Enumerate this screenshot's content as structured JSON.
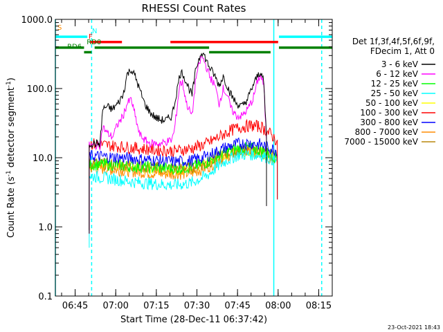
{
  "chart_data": {
    "type": "line",
    "title": "RHESSI Count Rates",
    "xlabel": "Start Time (28-Dec-11 06:37:42)",
    "ylabel": "Count Rate (s⁻¹ detector segment⁻¹)",
    "ylabel_main": "Count Rate (s",
    "ylabel_sup1": "-1",
    "ylabel_mid": " detector segment",
    "ylabel_sup2": "-1",
    "ylabel_end": ")",
    "y_scale": "log",
    "ylim": [
      0.1,
      1000
    ],
    "xlim": [
      "06:37:42",
      "08:20:00"
    ],
    "xlim_minutes": [
      0,
      102.3
    ],
    "x_ticks": [
      {
        "label": "06:45",
        "min": 7.3
      },
      {
        "label": "07:00",
        "min": 22.3
      },
      {
        "label": "07:15",
        "min": 37.3
      },
      {
        "label": "07:30",
        "min": 52.3
      },
      {
        "label": "07:45",
        "min": 67.3
      },
      {
        "label": "08:00",
        "min": 82.3
      },
      {
        "label": "08:15",
        "min": 97.3
      }
    ],
    "y_ticks": [
      {
        "label": "1000.0",
        "v": 1000
      },
      {
        "label": "100.0",
        "v": 100
      },
      {
        "label": "10.0",
        "v": 10
      },
      {
        "label": "1.0",
        "v": 1
      },
      {
        "label": "0.1",
        "v": 0.1
      }
    ],
    "legend_header": [
      "Det 1f,3f,4f,5f,6f,9f,",
      "FDecim 1, Att 0"
    ],
    "legend_placement": "right",
    "series": [
      {
        "name": "3 - 6 keV",
        "color": "#000000",
        "points": [
          [
            12.5,
            16
          ],
          [
            16.5,
            16
          ],
          [
            17.5,
            50
          ],
          [
            19,
            55
          ],
          [
            21,
            50
          ],
          [
            23,
            60
          ],
          [
            25,
            80
          ],
          [
            26.5,
            160
          ],
          [
            28,
            190
          ],
          [
            29.5,
            150
          ],
          [
            31,
            100
          ],
          [
            33,
            60
          ],
          [
            35,
            45
          ],
          [
            37,
            38
          ],
          [
            39,
            35
          ],
          [
            41,
            35
          ],
          [
            43,
            40
          ],
          [
            44,
            60
          ],
          [
            46,
            160
          ],
          [
            47,
            170
          ],
          [
            48.5,
            120
          ],
          [
            50.5,
            80
          ],
          [
            52,
            200
          ],
          [
            54,
            350
          ],
          [
            55,
            300
          ],
          [
            57,
            200
          ],
          [
            59,
            150
          ],
          [
            60.5,
            110
          ],
          [
            62,
            150
          ],
          [
            63.5,
            110
          ],
          [
            65,
            80
          ],
          [
            67,
            60
          ],
          [
            69,
            55
          ],
          [
            71,
            70
          ],
          [
            73,
            110
          ],
          [
            75,
            160
          ],
          [
            76,
            175
          ],
          [
            77,
            120
          ],
          [
            78,
            20
          ]
        ]
      },
      {
        "name": "6 - 12 keV",
        "color": "#ff00ff",
        "points": [
          [
            12.5,
            15
          ],
          [
            16.5,
            15
          ],
          [
            17.5,
            28
          ],
          [
            19,
            23
          ],
          [
            21,
            20
          ],
          [
            23,
            30
          ],
          [
            25,
            40
          ],
          [
            26.5,
            60
          ],
          [
            28,
            70
          ],
          [
            29.5,
            40
          ],
          [
            31,
            22
          ],
          [
            33,
            18
          ],
          [
            35,
            16
          ],
          [
            37,
            16
          ],
          [
            39,
            16
          ],
          [
            41,
            17
          ],
          [
            43,
            18
          ],
          [
            44,
            25
          ],
          [
            46,
            120
          ],
          [
            47,
            120
          ],
          [
            48.5,
            60
          ],
          [
            50.5,
            40
          ],
          [
            52,
            150
          ],
          [
            54,
            290
          ],
          [
            55,
            250
          ],
          [
            57,
            150
          ],
          [
            59,
            110
          ],
          [
            60.5,
            60
          ],
          [
            62,
            100
          ],
          [
            63.5,
            80
          ],
          [
            65,
            50
          ],
          [
            67,
            40
          ],
          [
            69,
            40
          ],
          [
            71,
            50
          ],
          [
            73,
            70
          ],
          [
            75,
            140
          ],
          [
            76,
            150
          ],
          [
            77,
            110
          ],
          [
            78,
            18
          ]
        ]
      },
      {
        "name": "12 - 25 keV",
        "color": "#00ff00",
        "points": [
          [
            12.5,
            8
          ],
          [
            16.5,
            8
          ],
          [
            20,
            8
          ],
          [
            28,
            7.5
          ],
          [
            36,
            7.2
          ],
          [
            44,
            7
          ],
          [
            50,
            7.3
          ],
          [
            56,
            8.5
          ],
          [
            60,
            10.5
          ],
          [
            64,
            12.5
          ],
          [
            68,
            13.8
          ],
          [
            72,
            13.8
          ],
          [
            76,
            12.8
          ],
          [
            80,
            11
          ],
          [
            82,
            10
          ]
        ]
      },
      {
        "name": "25 - 50 keV",
        "color": "#00ffff",
        "points": [
          [
            12.5,
            5.5
          ],
          [
            16.5,
            5.2
          ],
          [
            20,
            5
          ],
          [
            28,
            4.5
          ],
          [
            36,
            4.2
          ],
          [
            44,
            4
          ],
          [
            50,
            4.3
          ],
          [
            56,
            5.5
          ],
          [
            60,
            7.5
          ],
          [
            64,
            9.5
          ],
          [
            68,
            11
          ],
          [
            72,
            11.2
          ],
          [
            76,
            10.8
          ],
          [
            80,
            9.5
          ],
          [
            82,
            9
          ]
        ]
      },
      {
        "name": "50 - 100 keV",
        "color": "#ffff00",
        "points": [
          [
            12.5,
            8
          ],
          [
            16.5,
            8
          ],
          [
            20,
            7.8
          ],
          [
            28,
            7.5
          ],
          [
            36,
            7
          ],
          [
            44,
            6.8
          ],
          [
            50,
            7
          ],
          [
            56,
            8
          ],
          [
            60,
            9.8
          ],
          [
            64,
            11.5
          ],
          [
            68,
            12.5
          ],
          [
            72,
            12.5
          ],
          [
            76,
            11.8
          ],
          [
            80,
            10.2
          ],
          [
            82,
            9.5
          ]
        ]
      },
      {
        "name": "100 - 300 keV",
        "color": "#ff0000",
        "points": [
          [
            12.5,
            16
          ],
          [
            16.5,
            15.5
          ],
          [
            20,
            15
          ],
          [
            28,
            14
          ],
          [
            36,
            13
          ],
          [
            44,
            12.5
          ],
          [
            50,
            13.5
          ],
          [
            56,
            16
          ],
          [
            60,
            19.5
          ],
          [
            64,
            24
          ],
          [
            68,
            27.5
          ],
          [
            72,
            29
          ],
          [
            76,
            28
          ],
          [
            80,
            21
          ],
          [
            82,
            17
          ]
        ]
      },
      {
        "name": "300 - 800 keV",
        "color": "#0000ff",
        "points": [
          [
            12.5,
            10.5
          ],
          [
            16.5,
            10.5
          ],
          [
            20,
            10.2
          ],
          [
            28,
            9.8
          ],
          [
            36,
            9.2
          ],
          [
            44,
            8.8
          ],
          [
            50,
            9
          ],
          [
            56,
            10.5
          ],
          [
            60,
            12.5
          ],
          [
            64,
            14.5
          ],
          [
            68,
            16
          ],
          [
            72,
            16.2
          ],
          [
            76,
            15.5
          ],
          [
            80,
            13.5
          ],
          [
            82,
            12.8
          ]
        ]
      },
      {
        "name": "800 - 7000 keV",
        "color": "#ff8c00",
        "points": [
          [
            12.5,
            7.2
          ],
          [
            16.5,
            7
          ],
          [
            20,
            6.8
          ],
          [
            28,
            6.4
          ],
          [
            36,
            6
          ],
          [
            44,
            5.8
          ],
          [
            50,
            6
          ],
          [
            56,
            7.2
          ],
          [
            60,
            9
          ],
          [
            64,
            10.8
          ],
          [
            68,
            12
          ],
          [
            72,
            12.2
          ],
          [
            76,
            11.5
          ],
          [
            80,
            9.8
          ],
          [
            82,
            9.2
          ]
        ]
      },
      {
        "name": "7000 - 15000 keV",
        "color": "#b8860b",
        "points": [
          [
            12.5,
            8.5
          ],
          [
            16.5,
            8.3
          ],
          [
            20,
            8
          ],
          [
            28,
            7.6
          ],
          [
            36,
            7.2
          ],
          [
            44,
            7
          ],
          [
            50,
            7.2
          ],
          [
            56,
            8.3
          ],
          [
            60,
            10
          ],
          [
            64,
            11.8
          ],
          [
            68,
            13
          ],
          [
            72,
            13.2
          ],
          [
            76,
            12.5
          ],
          [
            80,
            10.8
          ],
          [
            82,
            10
          ]
        ]
      }
    ],
    "state_bars": [
      {
        "label": "S",
        "color": "#ff8c00",
        "segments": [],
        "y_level": 780,
        "label_x": 0
      },
      {
        "label": "N",
        "color": "#00ffff",
        "segments": [
          [
            0,
            11.8
          ],
          [
            82.6,
            102.3
          ]
        ],
        "y_level": 560,
        "label_x": 12.8
      },
      {
        "label": "F",
        "color": "#ff0000",
        "segments": [
          [
            12.9,
            24.6
          ],
          [
            42.5,
            82.3
          ]
        ],
        "y_level": 470,
        "label_x": 11.5
      },
      {
        "label": "RD0",
        "color": "#008000",
        "segments": [
          [
            0,
            10.6
          ],
          [
            14.5,
            56.8
          ],
          [
            82.6,
            102.3
          ]
        ],
        "y_level": 390,
        "label_x": 10.8
      },
      {
        "label": "RD6",
        "color": "#008000",
        "segments": [
          [
            10.6,
            13.4
          ],
          [
            56.8,
            79.5
          ]
        ],
        "y_level": 335,
        "label_x": 3.6
      }
    ],
    "vlines": [
      {
        "min": 0,
        "color": "#00ffff",
        "style": "solid"
      },
      {
        "min": 13.4,
        "color": "#00ffff",
        "style": "dashed"
      },
      {
        "min": 80.7,
        "color": "#00ffff",
        "style": "solid"
      },
      {
        "min": 98.4,
        "color": "#00ffff",
        "style": "dashed"
      }
    ],
    "footer_timestamp": "23-Oct-2021 18:43"
  }
}
